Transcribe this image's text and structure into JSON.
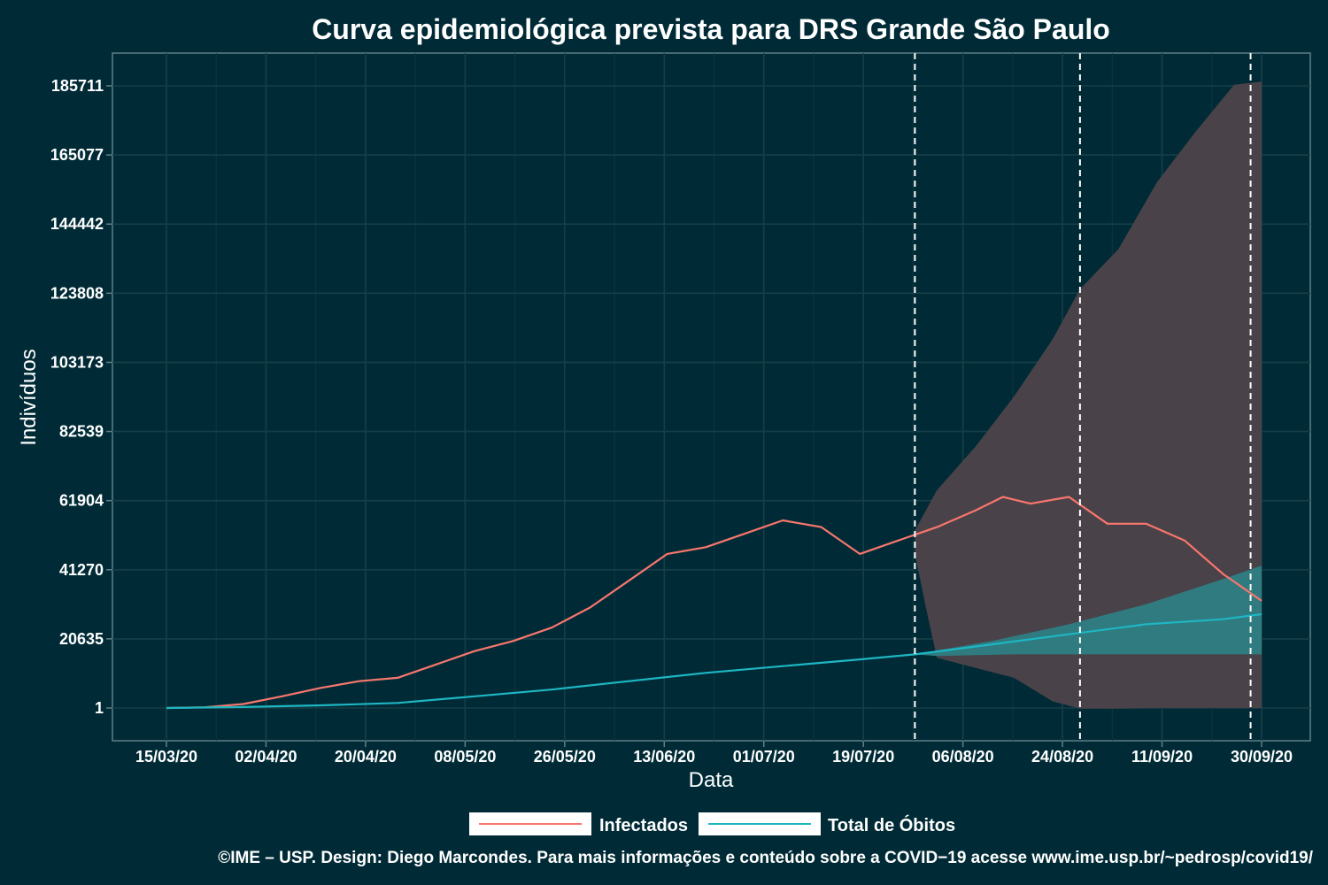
{
  "chart_data": {
    "type": "line",
    "title": "Curva epidemiológica prevista para DRS Grande São Paulo",
    "xlabel": "Data",
    "ylabel": "Indivíduos",
    "x_tick_labels": [
      "15/03/20",
      "02/04/20",
      "20/04/20",
      "08/05/20",
      "26/05/20",
      "13/06/20",
      "01/07/20",
      "19/07/20",
      "06/08/20",
      "24/08/20",
      "11/09/20",
      "30/09/20"
    ],
    "y_tick_labels": [
      "1",
      "20635",
      "41270",
      "61904",
      "82539",
      "103173",
      "123808",
      "144442",
      "165077",
      "185711"
    ],
    "ylim": [
      -9000,
      192000
    ],
    "grid": true,
    "legend_position": "bottom",
    "vertical_lines": [
      "2020-07-29",
      "2020-08-28",
      "2020-09-28"
    ],
    "series": [
      {
        "name": "Infectados",
        "color": "#f8766d",
        "points": [
          [
            "2020-03-15",
            1
          ],
          [
            "2020-03-22",
            200
          ],
          [
            "2020-03-29",
            1200
          ],
          [
            "2020-04-05",
            3500
          ],
          [
            "2020-04-12",
            6000
          ],
          [
            "2020-04-19",
            8000
          ],
          [
            "2020-04-26",
            9000
          ],
          [
            "2020-05-03",
            13000
          ],
          [
            "2020-05-10",
            17000
          ],
          [
            "2020-05-17",
            20000
          ],
          [
            "2020-05-24",
            24000
          ],
          [
            "2020-05-31",
            30000
          ],
          [
            "2020-06-07",
            38000
          ],
          [
            "2020-06-14",
            46000
          ],
          [
            "2020-06-21",
            48000
          ],
          [
            "2020-06-28",
            52000
          ],
          [
            "2020-07-05",
            56000
          ],
          [
            "2020-07-12",
            54000
          ],
          [
            "2020-07-19",
            46000
          ],
          [
            "2020-07-26",
            50000
          ],
          [
            "2020-08-02",
            54000
          ],
          [
            "2020-08-09",
            59000
          ],
          [
            "2020-08-14",
            63000
          ],
          [
            "2020-08-19",
            61000
          ],
          [
            "2020-08-26",
            63000
          ],
          [
            "2020-09-02",
            55000
          ],
          [
            "2020-09-09",
            55000
          ],
          [
            "2020-09-16",
            50000
          ],
          [
            "2020-09-23",
            40000
          ],
          [
            "2020-09-30",
            32000
          ]
        ]
      },
      {
        "name": "Total de Óbitos",
        "color": "#1eb6c3",
        "points": [
          [
            "2020-03-15",
            1
          ],
          [
            "2020-03-29",
            300
          ],
          [
            "2020-04-12",
            800
          ],
          [
            "2020-04-26",
            1500
          ],
          [
            "2020-05-10",
            3500
          ],
          [
            "2020-05-24",
            5500
          ],
          [
            "2020-06-07",
            8000
          ],
          [
            "2020-06-21",
            10500
          ],
          [
            "2020-07-05",
            12500
          ],
          [
            "2020-07-19",
            14500
          ],
          [
            "2020-07-29",
            16000
          ],
          [
            "2020-08-12",
            19000
          ],
          [
            "2020-08-26",
            22000
          ],
          [
            "2020-09-09",
            25000
          ],
          [
            "2020-09-23",
            26500
          ],
          [
            "2020-09-30",
            28000
          ]
        ]
      }
    ],
    "bands": [
      {
        "color": "#4a4249",
        "upper": [
          [
            "2020-07-29",
            53000
          ],
          [
            "2020-08-02",
            65000
          ],
          [
            "2020-08-09",
            78000
          ],
          [
            "2020-08-16",
            93000
          ],
          [
            "2020-08-23",
            110000
          ],
          [
            "2020-08-28",
            125000
          ],
          [
            "2020-09-04",
            137000
          ],
          [
            "2020-09-11",
            157000
          ],
          [
            "2020-09-18",
            172000
          ],
          [
            "2020-09-25",
            186000
          ],
          [
            "2020-09-30",
            187000
          ]
        ],
        "lower": [
          [
            "2020-07-29",
            46000
          ],
          [
            "2020-07-31",
            30000
          ],
          [
            "2020-08-02",
            15000
          ],
          [
            "2020-08-09",
            12000
          ],
          [
            "2020-08-16",
            9000
          ],
          [
            "2020-08-23",
            2000
          ],
          [
            "2020-08-28",
            -200
          ],
          [
            "2020-09-04",
            -200
          ],
          [
            "2020-09-11",
            0
          ],
          [
            "2020-09-18",
            0
          ],
          [
            "2020-09-30",
            0
          ]
        ]
      },
      {
        "color": "#2f7b80",
        "upper": [
          [
            "2020-07-29",
            16000
          ],
          [
            "2020-08-12",
            20000
          ],
          [
            "2020-08-26",
            25000
          ],
          [
            "2020-09-09",
            31000
          ],
          [
            "2020-09-23",
            38500
          ],
          [
            "2020-09-30",
            42500
          ]
        ],
        "lower": [
          [
            "2020-07-29",
            16000
          ],
          [
            "2020-08-02",
            15500
          ],
          [
            "2020-08-16",
            16000
          ],
          [
            "2020-09-01",
            16000
          ],
          [
            "2020-09-30",
            16000
          ]
        ]
      }
    ],
    "caption": "©IME – USP. Design: Diego Marcondes. Para mais informações e conteúdo sobre a COVID−19 acesse www.ime.usp.br/~pedrosp/covid19/"
  }
}
